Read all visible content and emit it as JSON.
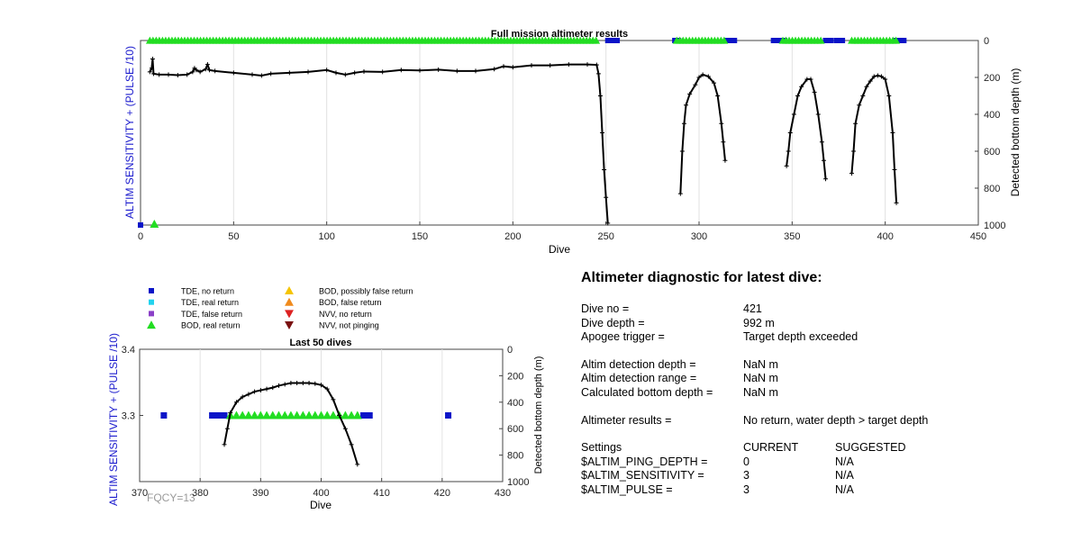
{
  "top_chart": {
    "title": "Full mission altimeter results",
    "xlabel": "Dive",
    "ylabel_left": "ALTIM SENSITIVITY + (PULSE /10)",
    "ylabel_right": "Detected bottom depth (m)",
    "xticks": [
      "0",
      "50",
      "100",
      "150",
      "200",
      "250",
      "300",
      "350",
      "400",
      "450"
    ],
    "yticks_right": [
      "0",
      "200",
      "400",
      "600",
      "800",
      "1000"
    ]
  },
  "bottom_chart": {
    "title": "Last 50 dives",
    "xlabel": "Dive",
    "ylabel_left": "ALTIM SENSITIVITY + (PULSE /10)",
    "ylabel_right": "Detected bottom depth (m)",
    "xticks": [
      "370",
      "380",
      "390",
      "400",
      "410",
      "420",
      "430"
    ],
    "yticks_left": [
      "3.4",
      "3.3"
    ],
    "yticks_right": [
      "0",
      "200",
      "400",
      "600",
      "800",
      "1000"
    ],
    "footnote": "FQCY=13"
  },
  "legend": [
    {
      "label": "TDE, no return",
      "marker": "square",
      "color": "#0a14c8"
    },
    {
      "label": "TDE, real return",
      "marker": "square",
      "color": "#22d3ee"
    },
    {
      "label": "TDE, false return",
      "marker": "square",
      "color": "#8b3fc7"
    },
    {
      "label": "BOD, real return",
      "marker": "triangle-up",
      "color": "#22dd22"
    },
    {
      "label": "BOD, possibly false return",
      "marker": "triangle-up",
      "color": "#f5c400"
    },
    {
      "label": "BOD, false return",
      "marker": "triangle-up",
      "color": "#f08a1c"
    },
    {
      "label": "NVV, no return",
      "marker": "triangle-down",
      "color": "#dd2222"
    },
    {
      "label": "NVV, not pinging",
      "marker": "triangle-down",
      "color": "#7a1010"
    }
  ],
  "diagnostic": {
    "title": "Altimeter diagnostic for latest dive:",
    "rows": [
      {
        "k": "Dive no =",
        "v": "421"
      },
      {
        "k": "Dive depth =",
        "v": "992 m"
      },
      {
        "k": "Apogee trigger =",
        "v": "Target depth exceeded"
      },
      {
        "k": "",
        "v": ""
      },
      {
        "k": "Altim detection depth =",
        "v": "NaN m"
      },
      {
        "k": "Altim detection range =",
        "v": "NaN m"
      },
      {
        "k": "Calculated bottom depth =",
        "v": "NaN m"
      },
      {
        "k": "",
        "v": ""
      },
      {
        "k": "Altimeter results =",
        "v": "No return, water depth > target depth"
      }
    ],
    "settings_header": {
      "k": "Settings",
      "current": "CURRENT",
      "suggested": "SUGGESTED"
    },
    "settings": [
      {
        "k": "$ALTIM_PING_DEPTH =",
        "current": "0",
        "suggested": "N/A"
      },
      {
        "k": "$ALTIM_SENSITIVITY =",
        "current": "3",
        "suggested": "N/A"
      },
      {
        "k": "$ALTIM_PULSE =",
        "current": "3",
        "suggested": "N/A"
      }
    ]
  },
  "chart_data": [
    {
      "type": "scatter",
      "title": "Full mission altimeter results",
      "xlabel": "Dive",
      "ylabel": "Detected bottom depth (m)",
      "xlim": [
        0,
        450
      ],
      "ylim_right": [
        0,
        1000
      ],
      "y_right_reversed": true,
      "grid": "vertical",
      "series": [
        {
          "name": "Detected bottom depth",
          "color": "#000000",
          "segments": [
            [
              [
                5,
                170
              ],
              [
                6,
                150
              ],
              [
                6.5,
                100
              ],
              [
                7,
                180
              ],
              [
                10,
                185
              ],
              [
                15,
                185
              ],
              [
                20,
                188
              ],
              [
                25,
                185
              ],
              [
                28,
                170
              ],
              [
                29,
                150
              ],
              [
                30,
                160
              ],
              [
                32,
                170
              ],
              [
                35,
                155
              ],
              [
                36,
                130
              ],
              [
                37,
                160
              ],
              [
                40,
                165
              ],
              [
                50,
                175
              ],
              [
                60,
                185
              ],
              [
                65,
                190
              ],
              [
                70,
                180
              ],
              [
                80,
                175
              ],
              [
                90,
                170
              ],
              [
                100,
                160
              ],
              [
                105,
                175
              ],
              [
                110,
                185
              ],
              [
                115,
                175
              ],
              [
                120,
                168
              ],
              [
                130,
                170
              ],
              [
                140,
                160
              ],
              [
                150,
                162
              ],
              [
                160,
                158
              ],
              [
                170,
                165
              ],
              [
                180,
                165
              ],
              [
                190,
                155
              ],
              [
                195,
                140
              ],
              [
                200,
                145
              ],
              [
                210,
                135
              ],
              [
                220,
                135
              ],
              [
                230,
                130
              ],
              [
                240,
                130
              ],
              [
                245,
                132
              ],
              [
                246,
                180
              ],
              [
                247,
                300
              ],
              [
                248,
                500
              ],
              [
                249,
                700
              ],
              [
                250,
                850
              ],
              [
                251,
                990
              ]
            ],
            [
              [
                290,
                830
              ],
              [
                291,
                600
              ],
              [
                292,
                450
              ],
              [
                293,
                350
              ],
              [
                295,
                290
              ],
              [
                298,
                240
              ],
              [
                300,
                200
              ],
              [
                302,
                185
              ],
              [
                305,
                195
              ],
              [
                308,
                230
              ],
              [
                310,
                300
              ],
              [
                312,
                450
              ],
              [
                313,
                550
              ],
              [
                314,
                650
              ]
            ],
            [
              [
                347,
                680
              ],
              [
                348,
                600
              ],
              [
                349,
                500
              ],
              [
                351,
                400
              ],
              [
                353,
                300
              ],
              [
                355,
                250
              ],
              [
                358,
                210
              ],
              [
                360,
                210
              ],
              [
                362,
                280
              ],
              [
                364,
                400
              ],
              [
                366,
                550
              ],
              [
                367,
                650
              ],
              [
                368,
                750
              ]
            ],
            [
              [
                382,
                720
              ],
              [
                383,
                600
              ],
              [
                384,
                450
              ],
              [
                386,
                350
              ],
              [
                388,
                300
              ],
              [
                390,
                250
              ],
              [
                392,
                220
              ],
              [
                394,
                195
              ],
              [
                396,
                190
              ],
              [
                398,
                195
              ],
              [
                400,
                210
              ],
              [
                402,
                300
              ],
              [
                404,
                500
              ],
              [
                405,
                700
              ],
              [
                406,
                880
              ]
            ]
          ]
        }
      ],
      "markers": {
        "bod_real_return_ranges": [
          [
            5,
            246
          ],
          [
            288,
            314
          ],
          [
            345,
            367
          ],
          [
            382,
            406
          ]
        ],
        "tde_no_return_ranges": [
          [
            251,
            256
          ],
          [
            287,
            289
          ],
          [
            315,
            319
          ],
          [
            340,
            346
          ],
          [
            368,
            371
          ],
          [
            374,
            377
          ],
          [
            406,
            410
          ]
        ],
        "bottom_markers": [
          {
            "x": 0,
            "kind": "TDE, no return"
          },
          {
            "x": 5,
            "kind": "BOD, real return"
          }
        ]
      }
    },
    {
      "type": "scatter",
      "title": "Last 50 dives",
      "xlabel": "Dive",
      "ylabel": "ALTIM SENSITIVITY + (PULSE /10)",
      "ylabel_right": "Detected bottom depth (m)",
      "xlim": [
        370,
        430
      ],
      "ylim": [
        3.2,
        3.4
      ],
      "ylim_right": [
        0,
        1000
      ],
      "y_right_reversed": true,
      "grid": "vertical",
      "series": [
        {
          "name": "TDE, no return",
          "color": "#0a14c8",
          "x": [
            374,
            382,
            383,
            384,
            407,
            408,
            421
          ],
          "y": [
            3.3,
            3.3,
            3.3,
            3.3,
            3.3,
            3.3,
            3.3
          ]
        },
        {
          "name": "BOD, real return",
          "color": "#22dd22",
          "x": [
            385,
            386,
            387,
            388,
            389,
            390,
            391,
            392,
            393,
            394,
            395,
            396,
            397,
            398,
            399,
            400,
            401,
            402,
            403,
            404,
            405,
            406
          ],
          "y": [
            3.3,
            3.3,
            3.3,
            3.3,
            3.3,
            3.3,
            3.3,
            3.3,
            3.3,
            3.3,
            3.3,
            3.3,
            3.3,
            3.3,
            3.3,
            3.3,
            3.3,
            3.3,
            3.3,
            3.3,
            3.3,
            3.3
          ]
        },
        {
          "name": "Detected bottom depth",
          "color": "#000000",
          "x": [
            384,
            384.5,
            385,
            386,
            387,
            388,
            389,
            390,
            391,
            392,
            393,
            394,
            395,
            396,
            397,
            398,
            399,
            400,
            401,
            402,
            403,
            404,
            405,
            406
          ],
          "y_right": [
            720,
            600,
            480,
            400,
            360,
            340,
            320,
            310,
            300,
            290,
            275,
            265,
            255,
            255,
            255,
            255,
            260,
            270,
            300,
            380,
            500,
            600,
            720,
            870
          ]
        }
      ]
    }
  ]
}
